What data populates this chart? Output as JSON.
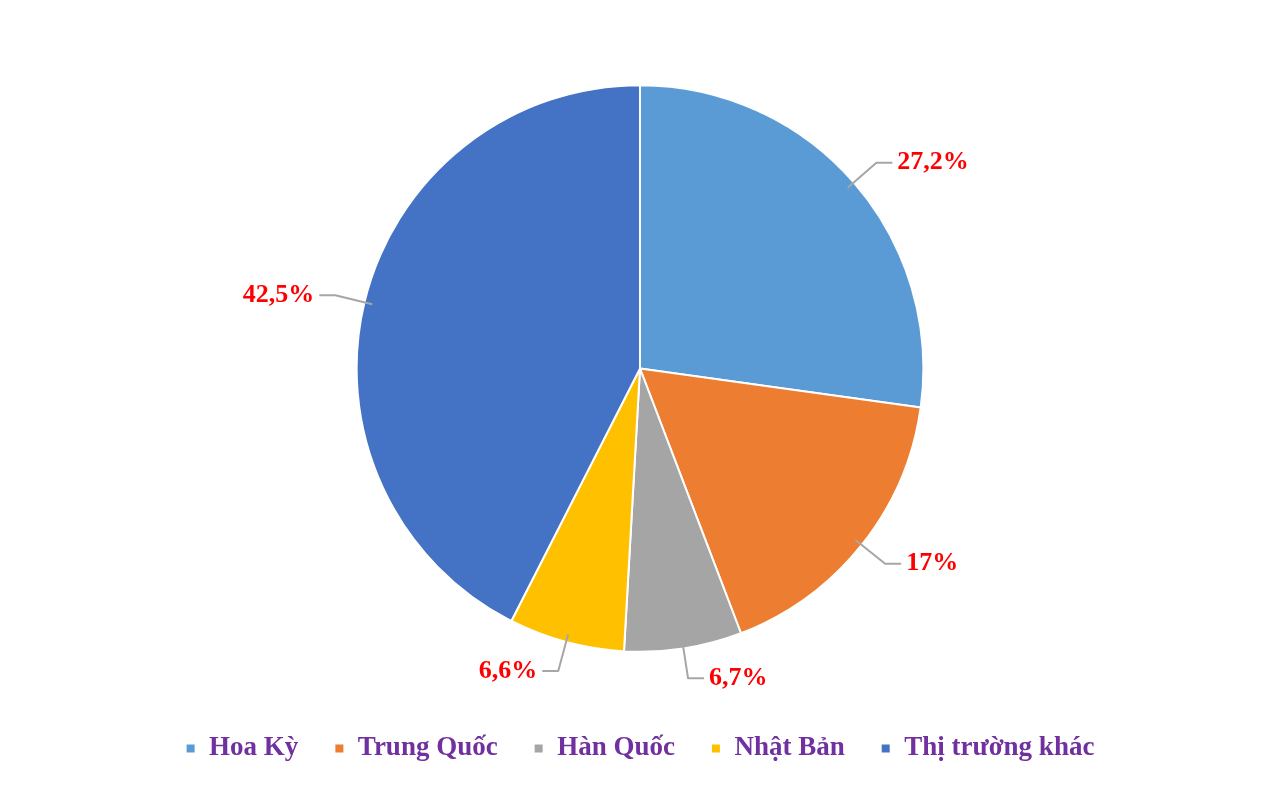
{
  "chart_data": {
    "type": "pie",
    "categories": [
      "Hoa Kỳ",
      "Trung Quốc",
      "Hàn Quốc",
      "Nhật Bản",
      "Thị trường khác"
    ],
    "values": [
      27.2,
      17,
      6.7,
      6.6,
      42.5
    ],
    "colors": [
      "#5b9bd5",
      "#ed7d31",
      "#a5a5a5",
      "#ffc000",
      "#4472c4"
    ],
    "value_labels": [
      "27,2%",
      "17%",
      "6,7%",
      "6,6%",
      "42,5%"
    ],
    "legend": "bottom"
  }
}
